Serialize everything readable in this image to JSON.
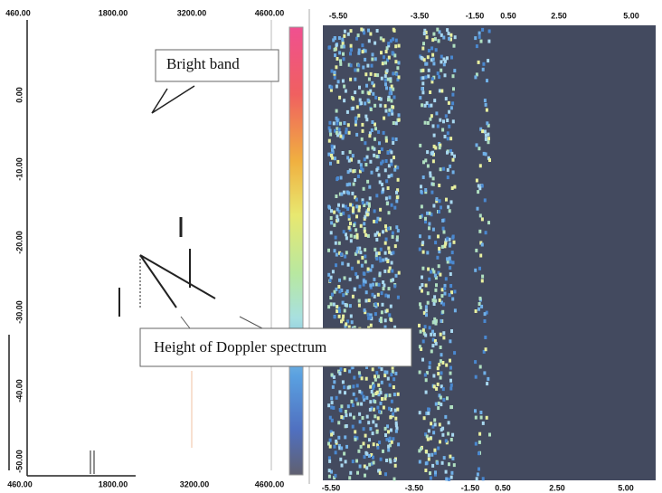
{
  "left_panel": {
    "top_ticks": [
      "460.00",
      "1800.00",
      "3200.00",
      "4600.00"
    ],
    "bottom_ticks": [
      "460.00",
      "1800.00",
      "3200.00",
      "4600.00"
    ],
    "side_ticks": [
      "0.00",
      "-10.00",
      "-20.00",
      "-30.00",
      "-40.00",
      "-50.00"
    ]
  },
  "right_panel": {
    "top_ticks": [
      "-5.50",
      "-3.50",
      "-1.50",
      "0.50",
      "2.50",
      "5.00"
    ],
    "bottom_ticks": [
      "-5.50",
      "-3.50",
      "-1.50",
      "0.50",
      "2.50",
      "5.00"
    ]
  },
  "annotations": {
    "bright_band": "Bright band",
    "doppler_height": "Height of Doppler spectrum"
  }
}
